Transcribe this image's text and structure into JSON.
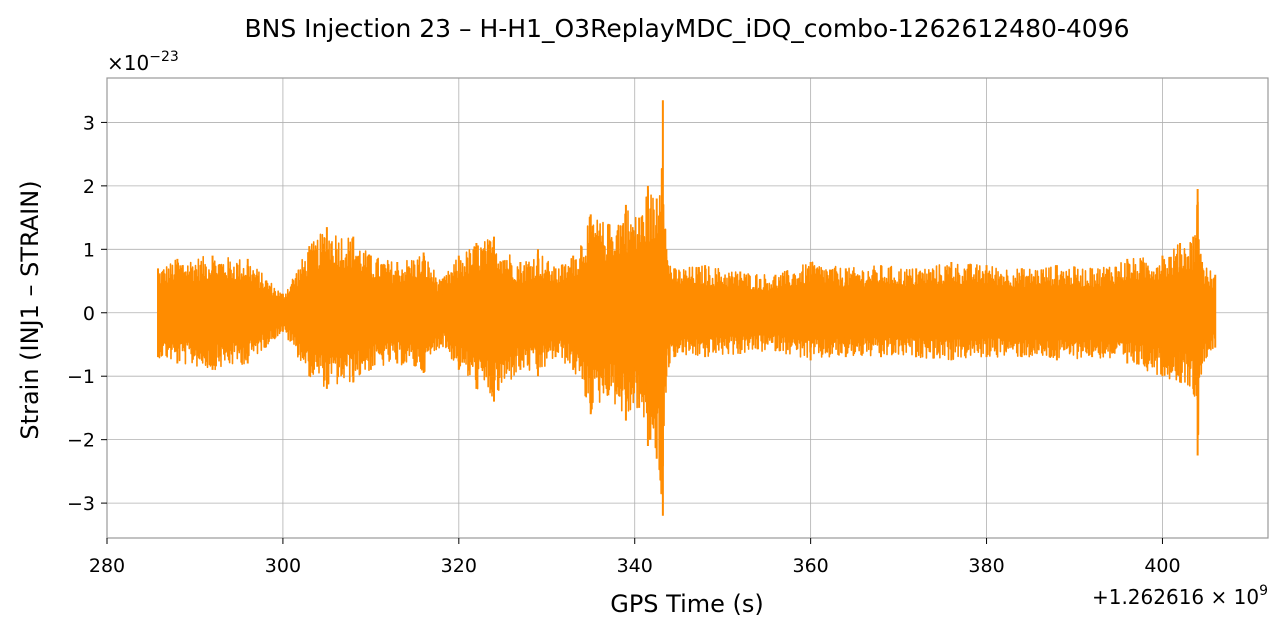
{
  "chart_data": {
    "type": "line",
    "title": "BNS Injection 23 – H-H1_O3ReplayMDC_iDQ_combo-1262612480-4096",
    "xlabel": "GPS Time (s)",
    "ylabel": "Strain (INJ1 – STRAIN)",
    "x_offset_label": "+1.262616 × 10",
    "x_offset_exponent": "9",
    "y_multiplier_label": "×10",
    "y_multiplier_exponent": "−23",
    "xlim": [
      280,
      412
    ],
    "ylim": [
      -3.55,
      3.7
    ],
    "xticks": [
      280,
      300,
      320,
      340,
      360,
      380,
      400
    ],
    "xtick_labels": [
      "280",
      "300",
      "320",
      "340",
      "360",
      "380",
      "400"
    ],
    "yticks": [
      -3,
      -2,
      -1,
      0,
      1,
      2,
      3
    ],
    "ytick_labels": [
      "−3",
      "−2",
      "−1",
      "0",
      "1",
      "2",
      "3"
    ],
    "grid": true,
    "series": [
      {
        "color": "#ff8c00",
        "x_range": [
          285.8,
          406
        ],
        "envelope": {
          "x": [
            285.8,
            288,
            292,
            296,
            300,
            303,
            305,
            308,
            310,
            313,
            316,
            318,
            320,
            322,
            324,
            327,
            329,
            331,
            333,
            335,
            337,
            339,
            340.5,
            341.5,
            342.5,
            343.2,
            343.6,
            344.5,
            348,
            352,
            356,
            360,
            364,
            368,
            372,
            376,
            380,
            384,
            388,
            392,
            396,
            400,
            402,
            403.5,
            404,
            404.5,
            406
          ],
          "upper": [
            0.7,
            0.85,
            0.9,
            0.85,
            0.3,
            1.05,
            1.35,
            1.2,
            0.9,
            0.8,
            0.95,
            0.5,
            0.9,
            1.1,
            1.2,
            0.8,
            1.0,
            0.7,
            0.9,
            1.55,
            1.4,
            1.7,
            1.5,
            2.0,
            1.8,
            3.35,
            1.0,
            0.7,
            0.75,
            0.65,
            0.6,
            0.8,
            0.7,
            0.75,
            0.7,
            0.8,
            0.75,
            0.7,
            0.75,
            0.7,
            0.85,
            0.9,
            1.1,
            1.2,
            1.95,
            0.8,
            0.6
          ],
          "lower": [
            -0.7,
            -0.8,
            -0.9,
            -0.8,
            -0.3,
            -1.0,
            -1.2,
            -1.1,
            -0.9,
            -0.8,
            -0.95,
            -0.5,
            -0.9,
            -1.2,
            -1.4,
            -0.9,
            -1.0,
            -0.7,
            -0.9,
            -1.6,
            -1.3,
            -1.7,
            -1.5,
            -2.1,
            -2.3,
            -3.2,
            -1.0,
            -0.7,
            -0.7,
            -0.65,
            -0.6,
            -0.75,
            -0.7,
            -0.7,
            -0.7,
            -0.75,
            -0.7,
            -0.7,
            -0.75,
            -0.7,
            -0.8,
            -1.0,
            -1.1,
            -1.2,
            -2.25,
            -0.8,
            -0.55
          ]
        }
      }
    ]
  }
}
